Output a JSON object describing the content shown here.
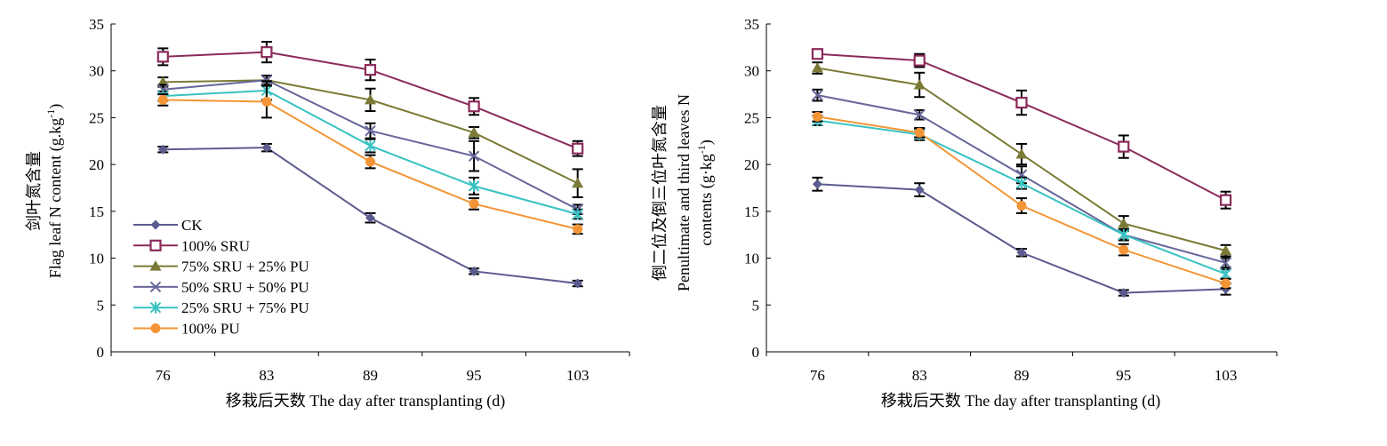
{
  "chart_data": [
    {
      "type": "line",
      "x": [
        "76",
        "83",
        "89",
        "95",
        "103"
      ],
      "xlabel": "移栽后天数 The day after transplanting (d)",
      "ylabel_line1": "剑叶氮含量",
      "ylabel_line2_prefix": "Flag leaf N content (g.kg",
      "ylabel_line2_sup": "-1",
      "ylabel_line2_suffix": ")",
      "ylim": [
        0,
        35
      ],
      "yticks": [
        "0",
        "5",
        "10",
        "15",
        "20",
        "25",
        "30",
        "35"
      ],
      "grid": false,
      "legend_position": "bottom-left",
      "series": [
        {
          "name": "CK",
          "color": "#5b5b8f",
          "marker": "diamond",
          "values": [
            21.6,
            21.8,
            14.3,
            8.6,
            7.3
          ],
          "errors": [
            0.3,
            0.4,
            0.5,
            0.3,
            0.3
          ]
        },
        {
          "name": "100% SRU",
          "color": "#8b2a5a",
          "marker": "square",
          "values": [
            31.5,
            32.0,
            30.1,
            26.2,
            21.7
          ],
          "errors": [
            0.9,
            1.1,
            1.1,
            0.9,
            0.8
          ]
        },
        {
          "name": "75% SRU + 25% PU",
          "color": "#7a7a36",
          "marker": "triangle",
          "values": [
            28.8,
            29.0,
            26.9,
            23.4,
            18.0
          ],
          "errors": [
            0.5,
            0.5,
            1.2,
            0.6,
            1.5
          ]
        },
        {
          "name": "50% SRU + 50% PU",
          "color": "#66669a",
          "marker": "x",
          "values": [
            28.0,
            29.0,
            23.6,
            20.9,
            15.2
          ],
          "errors": [
            0.5,
            0.5,
            0.8,
            1.6,
            0.5
          ]
        },
        {
          "name": "25% SRU + 75% PU",
          "color": "#38c2c2",
          "marker": "star",
          "values": [
            27.3,
            27.9,
            22.0,
            17.7,
            14.7
          ],
          "errors": [
            0.5,
            1.0,
            0.7,
            0.9,
            0.5
          ]
        },
        {
          "name": "100% PU",
          "color": "#f39536",
          "marker": "circle",
          "values": [
            26.9,
            26.7,
            20.3,
            15.8,
            13.1
          ],
          "errors": [
            0.6,
            1.7,
            0.7,
            0.6,
            0.5
          ]
        }
      ]
    },
    {
      "type": "line",
      "x": [
        "76",
        "83",
        "89",
        "95",
        "103"
      ],
      "xlabel": "移栽后天数 The day after transplanting (d)",
      "ylabel_line1": "倒二位及倒三位叶氮含量",
      "ylabel_line2": "Penultimate and third leaves N",
      "ylabel_line3_prefix": "contents (g·kg",
      "ylabel_line3_sup": "-1",
      "ylabel_line3_suffix": ")",
      "ylim": [
        0,
        35
      ],
      "yticks": [
        "0",
        "5",
        "10",
        "15",
        "20",
        "25",
        "30",
        "35"
      ],
      "grid": false,
      "series": [
        {
          "name": "CK",
          "color": "#5b5b8f",
          "marker": "diamond",
          "values": [
            17.9,
            17.3,
            10.6,
            6.3,
            6.7
          ],
          "errors": [
            0.7,
            0.7,
            0.4,
            0.3,
            0.6
          ]
        },
        {
          "name": "100% SRU",
          "color": "#8b2a5a",
          "marker": "square",
          "values": [
            31.8,
            31.1,
            26.6,
            21.9,
            16.2
          ],
          "errors": [
            0.5,
            0.7,
            1.3,
            1.2,
            0.9
          ]
        },
        {
          "name": "75% SRU + 25% PU",
          "color": "#7a7a36",
          "marker": "triangle",
          "values": [
            30.3,
            28.5,
            21.1,
            13.7,
            10.8
          ],
          "errors": [
            0.6,
            1.3,
            1.1,
            0.8,
            0.6
          ]
        },
        {
          "name": "50% SRU + 50% PU",
          "color": "#66669a",
          "marker": "x",
          "values": [
            27.4,
            25.3,
            18.9,
            12.5,
            9.5
          ],
          "errors": [
            0.6,
            0.5,
            0.9,
            0.6,
            0.5
          ]
        },
        {
          "name": "25% SRU + 75% PU",
          "color": "#38c2c2",
          "marker": "star",
          "values": [
            24.7,
            23.2,
            18.0,
            12.5,
            8.3
          ],
          "errors": [
            0.5,
            0.6,
            0.6,
            0.5,
            0.5
          ]
        },
        {
          "name": "100% PU",
          "color": "#f39536",
          "marker": "circle",
          "values": [
            25.1,
            23.4,
            15.6,
            10.9,
            7.3
          ],
          "errors": [
            0.5,
            0.5,
            0.8,
            0.6,
            0.5
          ]
        }
      ]
    }
  ]
}
